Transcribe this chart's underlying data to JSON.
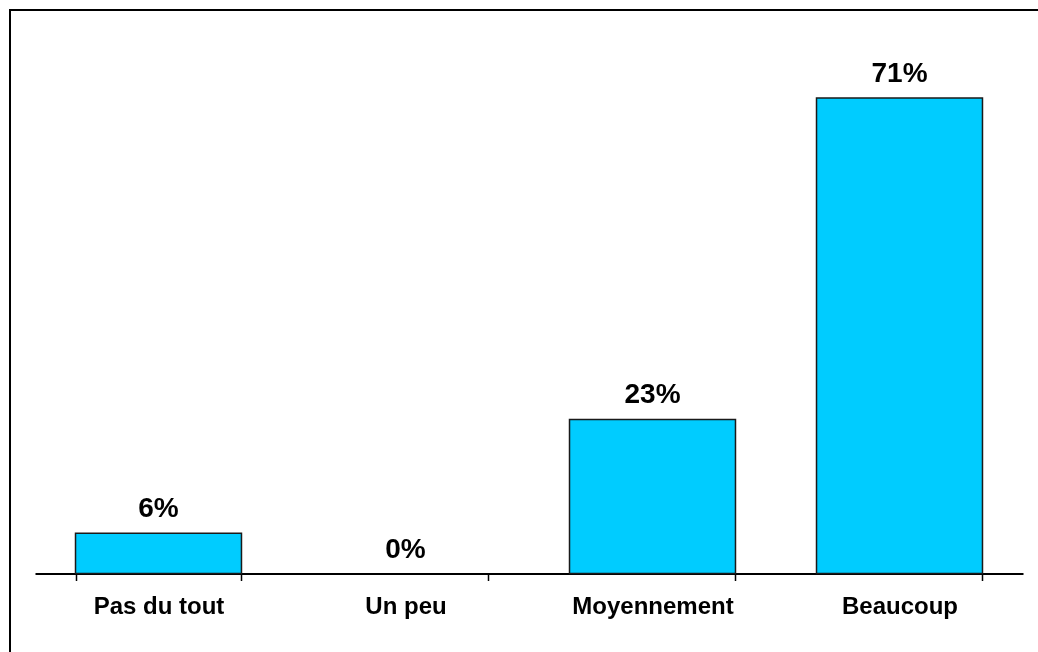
{
  "chart_data": {
    "type": "bar",
    "categories": [
      "Pas du tout",
      "Un peu",
      "Moyennement",
      "Beaucoup"
    ],
    "values": [
      6,
      0,
      23,
      71
    ],
    "color": "#00ccff",
    "value_labels": [
      "6%",
      "0%",
      "23%",
      "71%"
    ]
  }
}
